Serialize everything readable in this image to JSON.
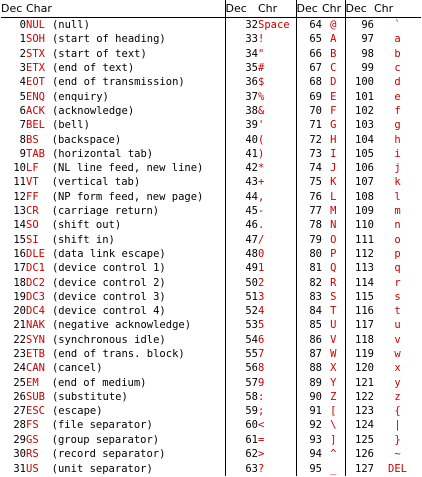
{
  "headers": [
    "Dec",
    "Char",
    "Dec",
    "Chr",
    "Dec",
    "Chr",
    "Dec",
    "Chr"
  ],
  "control": [
    {
      "dec": "0",
      "abbr": "NUL",
      "desc": "(null)"
    },
    {
      "dec": "1",
      "abbr": "SOH",
      "desc": "(start of heading)"
    },
    {
      "dec": "2",
      "abbr": "STX",
      "desc": "(start of text)"
    },
    {
      "dec": "3",
      "abbr": "ETX",
      "desc": "(end of text)"
    },
    {
      "dec": "4",
      "abbr": "EOT",
      "desc": "(end of transmission)"
    },
    {
      "dec": "5",
      "abbr": "ENQ",
      "desc": "(enquiry)"
    },
    {
      "dec": "6",
      "abbr": "ACK",
      "desc": "(acknowledge)"
    },
    {
      "dec": "7",
      "abbr": "BEL",
      "desc": "(bell)"
    },
    {
      "dec": "8",
      "abbr": "BS",
      "desc": "(backspace)"
    },
    {
      "dec": "9",
      "abbr": "TAB",
      "desc": "(horizontal tab)"
    },
    {
      "dec": "10",
      "abbr": "LF",
      "desc": "(NL line feed, new line)"
    },
    {
      "dec": "11",
      "abbr": "VT",
      "desc": "(vertical tab)"
    },
    {
      "dec": "12",
      "abbr": "FF",
      "desc": "(NP form feed, new page)"
    },
    {
      "dec": "13",
      "abbr": "CR",
      "desc": "(carriage return)"
    },
    {
      "dec": "14",
      "abbr": "SO",
      "desc": "(shift out)"
    },
    {
      "dec": "15",
      "abbr": "SI",
      "desc": "(shift in)"
    },
    {
      "dec": "16",
      "abbr": "DLE",
      "desc": "(data link escape)"
    },
    {
      "dec": "17",
      "abbr": "DC1",
      "desc": "(device control 1)"
    },
    {
      "dec": "18",
      "abbr": "DC2",
      "desc": "(device control 2)"
    },
    {
      "dec": "19",
      "abbr": "DC3",
      "desc": "(device control 3)"
    },
    {
      "dec": "20",
      "abbr": "DC4",
      "desc": "(device control 4)"
    },
    {
      "dec": "21",
      "abbr": "NAK",
      "desc": "(negative acknowledge)"
    },
    {
      "dec": "22",
      "abbr": "SYN",
      "desc": "(synchronous idle)"
    },
    {
      "dec": "23",
      "abbr": "ETB",
      "desc": "(end of trans. block)"
    },
    {
      "dec": "24",
      "abbr": "CAN",
      "desc": "(cancel)"
    },
    {
      "dec": "25",
      "abbr": "EM",
      "desc": "(end of medium)"
    },
    {
      "dec": "26",
      "abbr": "SUB",
      "desc": "(substitute)"
    },
    {
      "dec": "27",
      "abbr": "ESC",
      "desc": "(escape)"
    },
    {
      "dec": "28",
      "abbr": "FS",
      "desc": "(file separator)"
    },
    {
      "dec": "29",
      "abbr": "GS",
      "desc": "(group separator)"
    },
    {
      "dec": "30",
      "abbr": "RS",
      "desc": "(record separator)"
    },
    {
      "dec": "31",
      "abbr": "US",
      "desc": "(unit separator)"
    }
  ],
  "col2": [
    {
      "dec": "32",
      "chr": "Space"
    },
    {
      "dec": "33",
      "chr": "!"
    },
    {
      "dec": "34",
      "chr": "\""
    },
    {
      "dec": "35",
      "chr": "#"
    },
    {
      "dec": "36",
      "chr": "$"
    },
    {
      "dec": "37",
      "chr": "%"
    },
    {
      "dec": "38",
      "chr": "&"
    },
    {
      "dec": "39",
      "chr": "'"
    },
    {
      "dec": "40",
      "chr": "("
    },
    {
      "dec": "41",
      "chr": ")"
    },
    {
      "dec": "42",
      "chr": "*"
    },
    {
      "dec": "43",
      "chr": "+"
    },
    {
      "dec": "44",
      "chr": ","
    },
    {
      "dec": "45",
      "chr": "-"
    },
    {
      "dec": "46",
      "chr": "."
    },
    {
      "dec": "47",
      "chr": "/"
    },
    {
      "dec": "48",
      "chr": "0"
    },
    {
      "dec": "49",
      "chr": "1"
    },
    {
      "dec": "50",
      "chr": "2"
    },
    {
      "dec": "51",
      "chr": "3"
    },
    {
      "dec": "52",
      "chr": "4"
    },
    {
      "dec": "53",
      "chr": "5"
    },
    {
      "dec": "54",
      "chr": "6"
    },
    {
      "dec": "55",
      "chr": "7"
    },
    {
      "dec": "56",
      "chr": "8"
    },
    {
      "dec": "57",
      "chr": "9"
    },
    {
      "dec": "58",
      "chr": ":"
    },
    {
      "dec": "59",
      "chr": ";"
    },
    {
      "dec": "60",
      "chr": "<"
    },
    {
      "dec": "61",
      "chr": "="
    },
    {
      "dec": "62",
      "chr": ">"
    },
    {
      "dec": "63",
      "chr": "?"
    }
  ],
  "col3": [
    {
      "dec": "64",
      "chr": "@"
    },
    {
      "dec": "65",
      "chr": "A"
    },
    {
      "dec": "66",
      "chr": "B"
    },
    {
      "dec": "67",
      "chr": "C"
    },
    {
      "dec": "68",
      "chr": "D"
    },
    {
      "dec": "69",
      "chr": "E"
    },
    {
      "dec": "70",
      "chr": "F"
    },
    {
      "dec": "71",
      "chr": "G"
    },
    {
      "dec": "72",
      "chr": "H"
    },
    {
      "dec": "73",
      "chr": "I"
    },
    {
      "dec": "74",
      "chr": "J"
    },
    {
      "dec": "75",
      "chr": "K"
    },
    {
      "dec": "76",
      "chr": "L"
    },
    {
      "dec": "77",
      "chr": "M"
    },
    {
      "dec": "78",
      "chr": "N"
    },
    {
      "dec": "79",
      "chr": "O"
    },
    {
      "dec": "80",
      "chr": "P"
    },
    {
      "dec": "81",
      "chr": "Q"
    },
    {
      "dec": "82",
      "chr": "R"
    },
    {
      "dec": "83",
      "chr": "S"
    },
    {
      "dec": "84",
      "chr": "T"
    },
    {
      "dec": "85",
      "chr": "U"
    },
    {
      "dec": "86",
      "chr": "V"
    },
    {
      "dec": "87",
      "chr": "W"
    },
    {
      "dec": "88",
      "chr": "X"
    },
    {
      "dec": "89",
      "chr": "Y"
    },
    {
      "dec": "90",
      "chr": "Z"
    },
    {
      "dec": "91",
      "chr": "["
    },
    {
      "dec": "92",
      "chr": "\\"
    },
    {
      "dec": "93",
      "chr": "]"
    },
    {
      "dec": "94",
      "chr": "^"
    },
    {
      "dec": "95",
      "chr": "_"
    }
  ],
  "col4": [
    {
      "dec": "96",
      "chr": "`"
    },
    {
      "dec": "97",
      "chr": "a"
    },
    {
      "dec": "98",
      "chr": "b"
    },
    {
      "dec": "99",
      "chr": "c"
    },
    {
      "dec": "100",
      "chr": "d"
    },
    {
      "dec": "101",
      "chr": "e"
    },
    {
      "dec": "102",
      "chr": "f"
    },
    {
      "dec": "103",
      "chr": "g"
    },
    {
      "dec": "104",
      "chr": "h"
    },
    {
      "dec": "105",
      "chr": "i"
    },
    {
      "dec": "106",
      "chr": "j"
    },
    {
      "dec": "107",
      "chr": "k"
    },
    {
      "dec": "108",
      "chr": "l"
    },
    {
      "dec": "109",
      "chr": "m"
    },
    {
      "dec": "110",
      "chr": "n"
    },
    {
      "dec": "111",
      "chr": "o"
    },
    {
      "dec": "112",
      "chr": "p"
    },
    {
      "dec": "113",
      "chr": "q"
    },
    {
      "dec": "114",
      "chr": "r"
    },
    {
      "dec": "115",
      "chr": "s"
    },
    {
      "dec": "116",
      "chr": "t"
    },
    {
      "dec": "117",
      "chr": "u"
    },
    {
      "dec": "118",
      "chr": "v"
    },
    {
      "dec": "119",
      "chr": "w"
    },
    {
      "dec": "120",
      "chr": "x"
    },
    {
      "dec": "121",
      "chr": "y"
    },
    {
      "dec": "122",
      "chr": "z"
    },
    {
      "dec": "123",
      "chr": "{"
    },
    {
      "dec": "124",
      "chr": "|"
    },
    {
      "dec": "125",
      "chr": "}"
    },
    {
      "dec": "126",
      "chr": "~"
    },
    {
      "dec": "127",
      "chr": "DEL"
    }
  ],
  "colors": {
    "text": "#000000",
    "accent": "#cc0000",
    "background": "#ffffff"
  }
}
